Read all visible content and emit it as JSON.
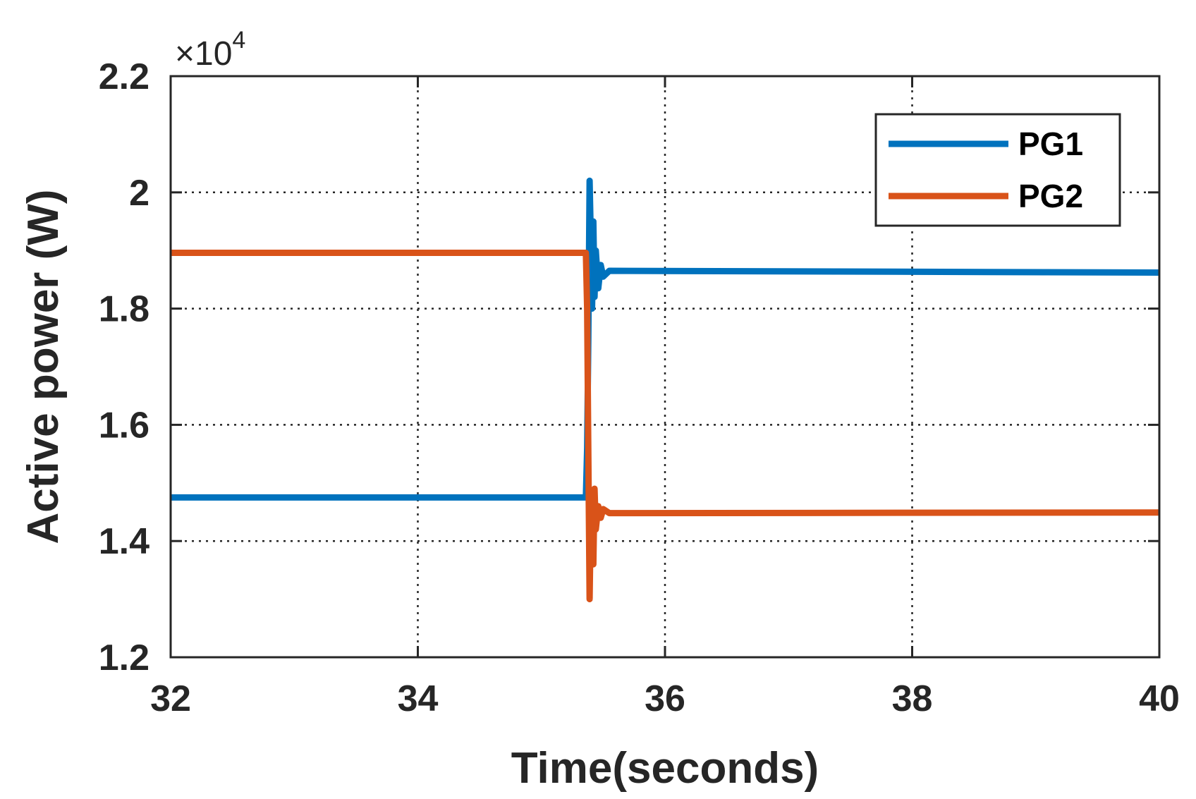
{
  "chart_data": {
    "type": "line",
    "title": "",
    "xlabel": "Time(seconds)",
    "ylabel": "Active power (W)",
    "y_exponent_label": "×10",
    "y_exponent_power": "4",
    "xlim": [
      32,
      40
    ],
    "ylim": [
      1.2,
      2.2
    ],
    "x_ticks": [
      32,
      34,
      36,
      38,
      40
    ],
    "x_tick_labels": [
      "32",
      "34",
      "36",
      "38",
      "40"
    ],
    "y_ticks": [
      1.2,
      1.4,
      1.6,
      1.8,
      2.0,
      2.2
    ],
    "y_tick_labels": [
      "1.2",
      "1.4",
      "1.6",
      "1.8",
      "2",
      "2.2"
    ],
    "grid": true,
    "legend_position": "top-right",
    "series": [
      {
        "name": "PG1",
        "color": "#0072BD",
        "x": [
          32,
          35.36,
          35.37,
          35.38,
          35.39,
          35.4,
          35.41,
          35.42,
          35.43,
          35.44,
          35.46,
          35.48,
          35.5,
          35.55,
          40
        ],
        "y": [
          1.475,
          1.475,
          1.56,
          1.75,
          2.02,
          1.92,
          1.8,
          1.95,
          1.82,
          1.9,
          1.835,
          1.875,
          1.855,
          1.865,
          1.862
        ]
      },
      {
        "name": "PG2",
        "color": "#D95319",
        "x": [
          32,
          35.36,
          35.37,
          35.38,
          35.39,
          35.4,
          35.41,
          35.42,
          35.43,
          35.44,
          35.46,
          35.48,
          35.5,
          35.55,
          40
        ],
        "y": [
          1.896,
          1.896,
          1.8,
          1.55,
          1.3,
          1.45,
          1.47,
          1.36,
          1.49,
          1.42,
          1.46,
          1.44,
          1.455,
          1.448,
          1.449
        ]
      }
    ]
  }
}
